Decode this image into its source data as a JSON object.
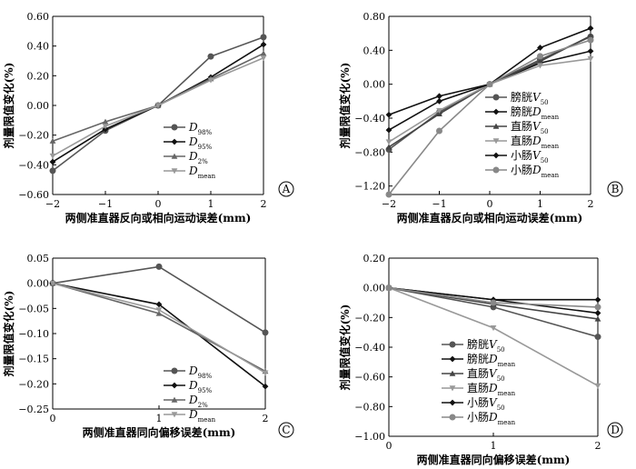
{
  "chart_data": [
    {
      "type": "line",
      "panel_label": "A",
      "x": [
        -2,
        -1,
        0,
        1,
        2
      ],
      "xlim": [
        -2,
        2
      ],
      "xticks": [
        -2,
        -1,
        0,
        1,
        2
      ],
      "xtick_labels": [
        "−2",
        "−1",
        "0",
        "1",
        "2"
      ],
      "ylim": [
        -0.6,
        0.6
      ],
      "yticks": [
        -0.6,
        -0.4,
        -0.2,
        0,
        0.2,
        0.4,
        0.6
      ],
      "ytick_labels": [
        "−0.60",
        "−0.40",
        "−0.20",
        "0.00",
        "0.20",
        "0.40",
        "0.60"
      ],
      "xlabel": "两侧准直器反向或相向运动误差(mm)",
      "ylabel": "剂量限值变化(%)",
      "legend_position": "lower-right",
      "series": [
        {
          "name": "D",
          "name_sub": "98%",
          "color": "#555555",
          "marker": "circle",
          "values": [
            -0.44,
            -0.17,
            0,
            0.33,
            0.46
          ]
        },
        {
          "name": "D",
          "name_sub": "95%",
          "color": "#111111",
          "marker": "diamond",
          "values": [
            -0.38,
            -0.16,
            0,
            0.19,
            0.41
          ]
        },
        {
          "name": "D",
          "name_sub": "2%",
          "color": "#666666",
          "marker": "triangle-up",
          "values": [
            -0.24,
            -0.11,
            0,
            0.18,
            0.35
          ]
        },
        {
          "name": "D",
          "name_sub": "mean",
          "color": "#999999",
          "marker": "triangle-down",
          "values": [
            -0.34,
            -0.14,
            0,
            0.17,
            0.32
          ]
        }
      ]
    },
    {
      "type": "line",
      "panel_label": "B",
      "x": [
        -2,
        -1,
        0,
        1,
        2
      ],
      "xlim": [
        -2,
        2
      ],
      "xticks": [
        -2,
        -1,
        0,
        1,
        2
      ],
      "xtick_labels": [
        "−2",
        "−1",
        "0",
        "1",
        "2"
      ],
      "ylim": [
        -1.3,
        0.8
      ],
      "yticks": [
        -1.2,
        -0.8,
        -0.4,
        0,
        0.4,
        0.8
      ],
      "ytick_labels": [
        "−1.20",
        "−0.80",
        "−0.40",
        "0.00",
        "0.40",
        "0.80"
      ],
      "xlabel": "两侧准直器反向或相向运动误差(mm)",
      "ylabel": "剂量限值变化(%)",
      "legend_position": "lower-right",
      "series": [
        {
          "name": "膀胱V",
          "name_sub": "50",
          "color": "#555555",
          "marker": "circle",
          "values": [
            -0.77,
            -0.33,
            0,
            0.29,
            0.56
          ]
        },
        {
          "name": "膀胱D",
          "name_sub": "mean",
          "color": "#111111",
          "marker": "diamond",
          "values": [
            -0.36,
            -0.14,
            0,
            0.25,
            0.39
          ]
        },
        {
          "name": "直肠V",
          "name_sub": "50",
          "color": "#444444",
          "marker": "triangle-up",
          "values": [
            -0.74,
            -0.35,
            0,
            0.27,
            0.57
          ]
        },
        {
          "name": "直肠D",
          "name_sub": "mean",
          "color": "#999999",
          "marker": "triangle-down",
          "values": [
            -0.68,
            -0.31,
            0,
            0.22,
            0.3
          ]
        },
        {
          "name": "小肠V",
          "name_sub": "50",
          "color": "#111111",
          "marker": "diamond",
          "values": [
            -0.54,
            -0.2,
            0,
            0.43,
            0.66
          ]
        },
        {
          "name": "小肠D",
          "name_sub": "mean",
          "color": "#888888",
          "marker": "circle",
          "values": [
            -1.3,
            -0.55,
            0,
            0.33,
            0.52
          ]
        }
      ]
    },
    {
      "type": "line",
      "panel_label": "C",
      "x": [
        0,
        1,
        2
      ],
      "xlim": [
        0,
        2
      ],
      "xticks": [
        0,
        1,
        2
      ],
      "xtick_labels": [
        "0",
        "1",
        "2"
      ],
      "ylim": [
        -0.25,
        0.05
      ],
      "yticks": [
        -0.25,
        -0.2,
        -0.15,
        -0.1,
        -0.05,
        0,
        0.05
      ],
      "ytick_labels": [
        "−0.25",
        "−0.20",
        "−0.15",
        "−0.10",
        "−0.05",
        "0.00",
        "0.05"
      ],
      "xlabel": "两侧准直器同向偏移误差(mm)",
      "ylabel": "剂量限值变化(%)",
      "legend_position": "lower-left",
      "series": [
        {
          "name": "D",
          "name_sub": "98%",
          "color": "#555555",
          "marker": "circle",
          "values": [
            0,
            0.033,
            -0.098
          ]
        },
        {
          "name": "D",
          "name_sub": "95%",
          "color": "#111111",
          "marker": "diamond",
          "values": [
            0,
            -0.042,
            -0.205
          ]
        },
        {
          "name": "D",
          "name_sub": "2%",
          "color": "#666666",
          "marker": "triangle-up",
          "values": [
            0,
            -0.06,
            -0.175
          ]
        },
        {
          "name": "D",
          "name_sub": "mean",
          "color": "#999999",
          "marker": "triangle-down",
          "values": [
            0,
            -0.053,
            -0.178
          ]
        }
      ]
    },
    {
      "type": "line",
      "panel_label": "D",
      "x": [
        0,
        1,
        2
      ],
      "xlim": [
        0,
        2
      ],
      "xticks": [
        0,
        1,
        2
      ],
      "xtick_labels": [
        "0",
        "1",
        "2"
      ],
      "ylim": [
        -1.0,
        0.2
      ],
      "yticks": [
        -1.0,
        -0.8,
        -0.6,
        -0.4,
        -0.2,
        0,
        0.2
      ],
      "ytick_labels": [
        "−1.00",
        "−0.80",
        "−0.60",
        "−0.40",
        "−0.20",
        "0.00",
        "0.20"
      ],
      "xlabel": "两侧准直器同向偏移误差(mm)",
      "ylabel": "剂量限值变化(%)",
      "legend_position": "lower-left",
      "series": [
        {
          "name": "膀胱V",
          "name_sub": "50",
          "color": "#555555",
          "marker": "circle",
          "values": [
            0,
            -0.13,
            -0.33
          ]
        },
        {
          "name": "膀胱D",
          "name_sub": "mean",
          "color": "#111111",
          "marker": "diamond",
          "values": [
            0,
            -0.08,
            -0.17
          ]
        },
        {
          "name": "直肠V",
          "name_sub": "50",
          "color": "#444444",
          "marker": "triangle-up",
          "values": [
            0,
            -0.11,
            -0.21
          ]
        },
        {
          "name": "直肠D",
          "name_sub": "mean",
          "color": "#999999",
          "marker": "triangle-down",
          "values": [
            0,
            -0.27,
            -0.66
          ]
        },
        {
          "name": "小肠V",
          "name_sub": "50",
          "color": "#111111",
          "marker": "diamond",
          "values": [
            0,
            -0.08,
            -0.08
          ]
        },
        {
          "name": "小肠D",
          "name_sub": "mean",
          "color": "#888888",
          "marker": "circle",
          "values": [
            0,
            -0.1,
            -0.13
          ]
        }
      ]
    }
  ]
}
